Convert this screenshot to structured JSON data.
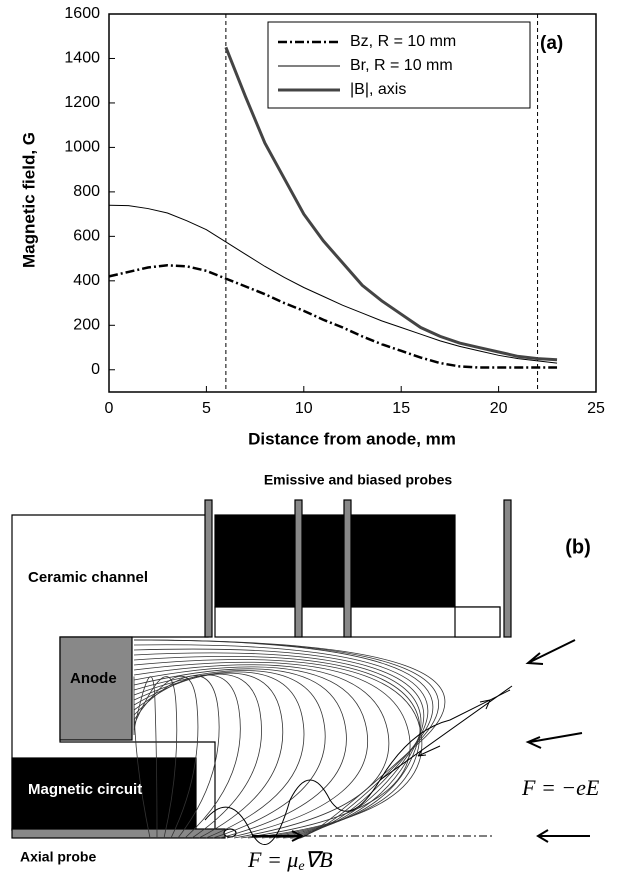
{
  "chart_data": {
    "type": "line",
    "annotation": "(a)",
    "x_label": "Distance from anode, mm",
    "y_label": "Magnetic field, G",
    "x": [
      0,
      1,
      2,
      3,
      4,
      5,
      6,
      7,
      8,
      9,
      10,
      11,
      12,
      13,
      14,
      15,
      16,
      17,
      18,
      19,
      20,
      21,
      22,
      23
    ],
    "series": [
      {
        "name": "Bz, R = 10 mm",
        "color": "#000000",
        "dash": "dashdot",
        "width": 2.5,
        "values": [
          420,
          440,
          460,
          470,
          465,
          445,
          410,
          375,
          340,
          300,
          265,
          225,
          190,
          150,
          115,
          85,
          55,
          30,
          15,
          10,
          10,
          10,
          10,
          10
        ]
      },
      {
        "name": "Br, R = 10 mm",
        "color": "#000000",
        "dash": "solid",
        "width": 1,
        "values": [
          740,
          738,
          725,
          705,
          670,
          630,
          575,
          520,
          465,
          415,
          370,
          330,
          290,
          255,
          220,
          190,
          160,
          130,
          105,
          85,
          65,
          50,
          40,
          30
        ]
      },
      {
        "name": "|B|, axis",
        "color": "#444444",
        "dash": "solid",
        "width": 3,
        "values": [
          null,
          null,
          null,
          null,
          null,
          null,
          1450,
          1230,
          1020,
          860,
          700,
          580,
          480,
          380,
          310,
          250,
          190,
          150,
          120,
          100,
          80,
          60,
          50,
          45
        ]
      }
    ],
    "vlines": [
      6,
      22
    ],
    "xlim": [
      0,
      25
    ],
    "xticks": [
      0,
      5,
      10,
      15,
      20,
      25
    ],
    "ylim": [
      -100,
      1600
    ],
    "yticks": [
      0,
      200,
      400,
      600,
      800,
      1000,
      1200,
      1400,
      1600
    ],
    "legend": "top-right"
  },
  "diagram": {
    "title": "Emissive and biased probes",
    "panel": "(b)",
    "channel": "Ceramic channel",
    "anode": "Anode",
    "circuit": "Magnetic circuit",
    "probe": "Axial probe",
    "force_electric": "F = −eE",
    "force_magnetic": {
      "lhs": "F = μ",
      "sub": "e",
      "rhs": "∇B"
    }
  }
}
